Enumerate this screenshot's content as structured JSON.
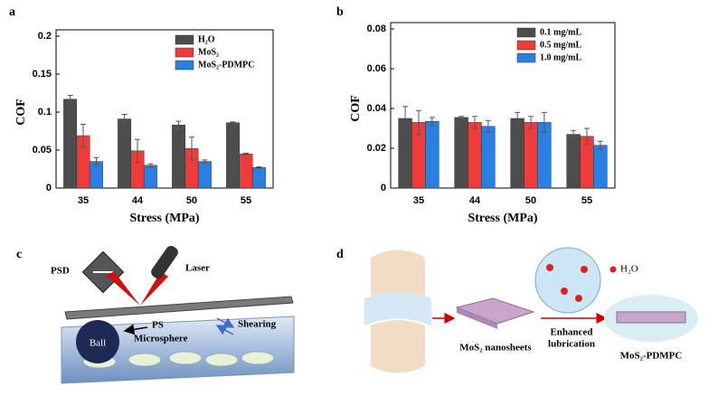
{
  "chart_data": [
    {
      "type": "bar",
      "panel": "a",
      "ylabel": "COF",
      "xlabel": "Stress (MPa)",
      "categories": [
        "35",
        "44",
        "50",
        "55"
      ],
      "series": [
        {
          "name": "H₂O",
          "color": "#4d4d4d",
          "values": [
            0.117,
            0.091,
            0.083,
            0.086
          ],
          "errors": [
            0.005,
            0.006,
            0.005,
            0.001
          ]
        },
        {
          "name": "MoS₂",
          "color": "#ee3b3b",
          "values": [
            0.069,
            0.049,
            0.052,
            0.045
          ],
          "errors": [
            0.015,
            0.015,
            0.015,
            0.001
          ]
        },
        {
          "name": "MoS₂-PDMPC",
          "color": "#2a7fe0",
          "values": [
            0.035,
            0.03,
            0.035,
            0.027
          ],
          "errors": [
            0.005,
            0.002,
            0.002,
            0.001
          ]
        }
      ],
      "ylim": [
        0,
        0.2
      ],
      "yticks": [
        0,
        0.05,
        0.1,
        0.15,
        0.2
      ],
      "legend": "upper right"
    },
    {
      "type": "bar",
      "panel": "b",
      "ylabel": "COF",
      "xlabel": "Stress (MPa)",
      "categories": [
        "35",
        "44",
        "50",
        "55"
      ],
      "series": [
        {
          "name": "0.1 mg/mL",
          "color": "#4d4d4d",
          "values": [
            0.035,
            0.0355,
            0.035,
            0.027
          ],
          "errors": [
            0.006,
            0.0005,
            0.003,
            0.002
          ]
        },
        {
          "name": "0.5 mg/mL",
          "color": "#ee3b3b",
          "values": [
            0.033,
            0.033,
            0.033,
            0.026
          ],
          "errors": [
            0.006,
            0.003,
            0.003,
            0.004
          ]
        },
        {
          "name": "1.0 mg/mL",
          "color": "#2a7fe0",
          "values": [
            0.0335,
            0.031,
            0.033,
            0.0215
          ],
          "errors": [
            0.002,
            0.003,
            0.005,
            0.002
          ]
        }
      ],
      "ylim": [
        0,
        0.08
      ],
      "yticks": [
        0,
        0.02,
        0.04,
        0.06,
        0.08
      ],
      "legend": "upper right"
    }
  ],
  "panel_c": {
    "label": "c",
    "psd": "PSD",
    "laser": "Laser",
    "ps": "PS",
    "microsphere": "Microsphere",
    "ball": "Ball",
    "shearing": "Shearing"
  },
  "panel_d": {
    "label": "d",
    "water": "H₂O",
    "nanosheets": "MoS₂ nanosheets",
    "enhanced": "Enhanced",
    "lubrication": "lubrication",
    "product": "MoS₂-PDMPC"
  }
}
